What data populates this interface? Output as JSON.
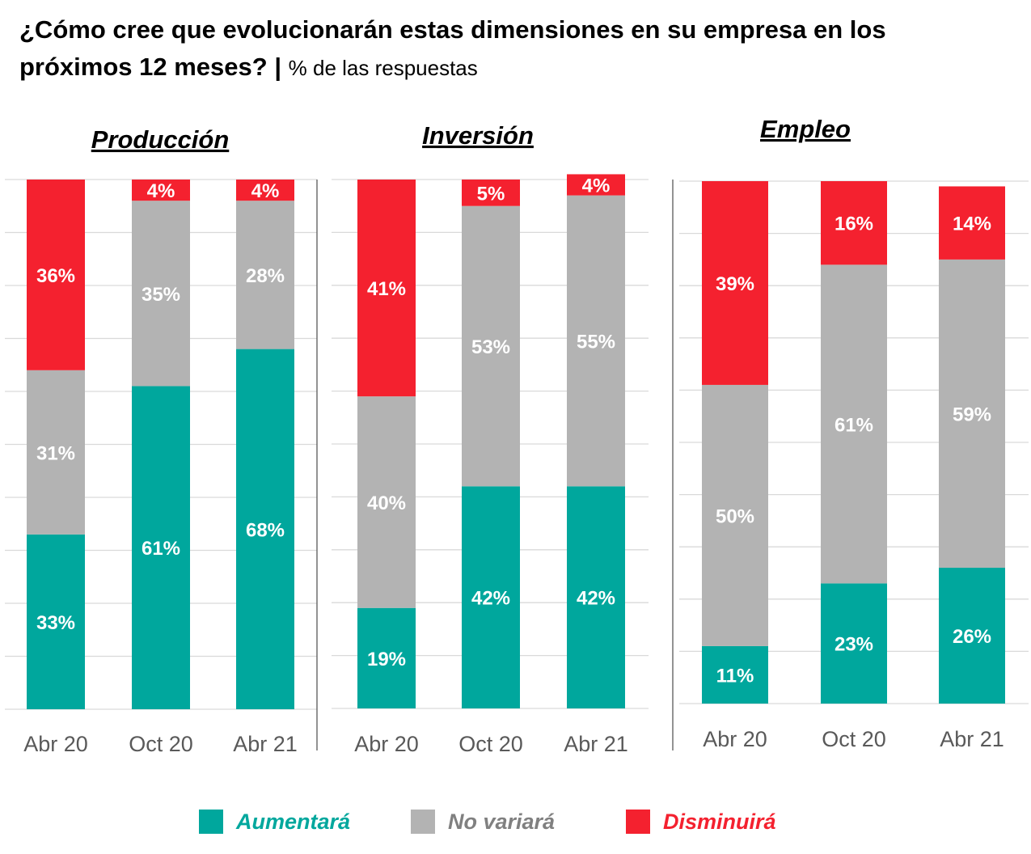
{
  "title": "¿Cómo cree que evolucionarán estas dimensiones en su empresa en los",
  "title_line2": "próximos 12 meses?",
  "separator": "|",
  "subtitle": "% de las respuestas",
  "colors": {
    "aumentara": "#00a79d",
    "no_variara": "#b3b3b3",
    "disminuira": "#f4212f",
    "grid": "#d9d9d9",
    "axis": "#595959"
  },
  "legend": [
    {
      "key": "aumentara",
      "label": "Aumentará"
    },
    {
      "key": "no_variara",
      "label": "No variará"
    },
    {
      "key": "disminuira",
      "label": "Disminuirá"
    }
  ],
  "chart_data": [
    {
      "type": "bar",
      "stacked": true,
      "title": "Producción",
      "categories": [
        "Abr 20",
        "Oct 20",
        "Abr 21"
      ],
      "ylim": [
        0,
        100
      ],
      "series": [
        {
          "name": "Aumentará",
          "color_key": "aumentara",
          "values": [
            33,
            61,
            68
          ]
        },
        {
          "name": "No variará",
          "color_key": "no_variara",
          "values": [
            31,
            35,
            28
          ]
        },
        {
          "name": "Disminuirá",
          "color_key": "disminuira",
          "values": [
            36,
            4,
            4
          ]
        }
      ]
    },
    {
      "type": "bar",
      "stacked": true,
      "title": "Inversión",
      "categories": [
        "Abr 20",
        "Oct 20",
        "Abr 21"
      ],
      "ylim": [
        0,
        100
      ],
      "series": [
        {
          "name": "Aumentará",
          "color_key": "aumentara",
          "values": [
            19,
            42,
            42
          ]
        },
        {
          "name": "No variará",
          "color_key": "no_variara",
          "values": [
            40,
            53,
            55
          ]
        },
        {
          "name": "Disminuirá",
          "color_key": "disminuira",
          "values": [
            41,
            5,
            4
          ]
        }
      ]
    },
    {
      "type": "bar",
      "stacked": true,
      "title": "Empleo",
      "categories": [
        "Abr 20",
        "Oct 20",
        "Abr 21"
      ],
      "ylim": [
        0,
        100
      ],
      "series": [
        {
          "name": "Aumentará",
          "color_key": "aumentara",
          "values": [
            11,
            23,
            26
          ]
        },
        {
          "name": "No variará",
          "color_key": "no_variara",
          "values": [
            50,
            61,
            59
          ]
        },
        {
          "name": "Disminuirá",
          "color_key": "disminuira",
          "values": [
            39,
            16,
            14
          ]
        }
      ]
    }
  ]
}
